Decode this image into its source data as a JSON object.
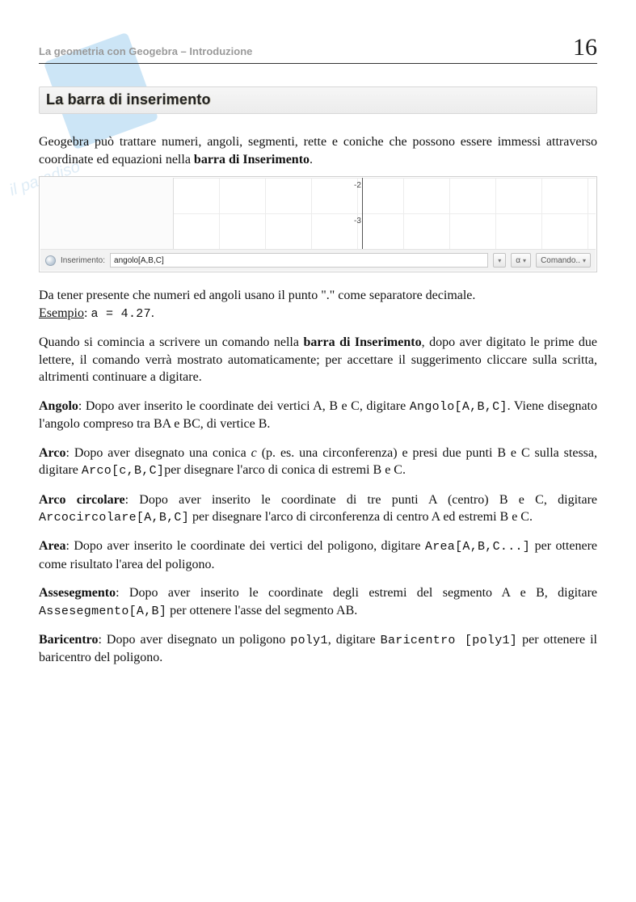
{
  "header": {
    "running_head": "La geometria con Geogebra – Introduzione",
    "page_number": "16"
  },
  "section": {
    "title": "La barra di inserimento"
  },
  "watermark": {
    "subtitle": "il paradiso"
  },
  "intro": {
    "p1_a": "Geogebra può trattare numeri, angoli, segmenti, rette e coniche che possono essere immessi attraverso coordinate ed equazioni nella ",
    "p1_b": "barra di Inserimento",
    "p1_c": "."
  },
  "app": {
    "axis_label_2": "-2",
    "axis_label_3": "-3",
    "input_label": "Inserimento:",
    "input_value": "angolo[A,B,C]",
    "alpha_button": "α",
    "command_label": "Comando.."
  },
  "para2": {
    "a": "Da tener presente che numeri ed angoli usano il punto \".\" come separatore decimale.",
    "ex_label": "Esempio",
    "ex_sep": ": ",
    "ex_code": "a = 4.27",
    "ex_end": "."
  },
  "para3": {
    "a": "Quando si comincia a scrivere un comando nella ",
    "b": "barra di Inserimento",
    "c": ", dopo aver digitato le prime due lettere, il comando verrà mostrato automaticamente; per accettare il suggerimento cliccare sulla scritta, altrimenti continuare a digitare."
  },
  "entries": {
    "angolo": {
      "term": "Angolo",
      "a": ": Dopo aver inserito le coordinate dei vertici A, B e C, digitare ",
      "code": "Angolo[A,B,C]",
      "b": ". Viene disegnato l'angolo compreso tra BA e BC, di vertice B."
    },
    "arco": {
      "term": "Arco",
      "a": ": Dopo aver disegnato una conica ",
      "it": "c",
      "a2": " (p. es. una circonferenza) e presi due punti B e C sulla stessa, digitare ",
      "code": "Arco[c,B,C]",
      "b": "per disegnare l'arco di conica di estremi B e C."
    },
    "arcocirc": {
      "term": "Arco circolare",
      "a": ": Dopo aver inserito le coordinate di tre punti A (centro) B e C, digitare ",
      "code": "Arcocircolare[A,B,C]",
      "b": " per disegnare l'arco di circonferenza di centro A ed estremi B e C."
    },
    "area": {
      "term": "Area",
      "a": ": Dopo aver inserito le coordinate dei vertici del poligono, digitare ",
      "code": "Area[A,B,C...]",
      "b": " per ottenere come risultato l'area del poligono."
    },
    "asse": {
      "term": "Assesegmento",
      "a": ": Dopo aver inserito le coordinate degli estremi del segmento A e B,  digitare ",
      "code": "Assesegmento[A,B]",
      "b": " per ottenere l'asse del segmento AB."
    },
    "bari": {
      "term": "Baricentro",
      "a": ": Dopo aver disegnato un poligono ",
      "code1": "poly1",
      "a2": ", digitare ",
      "code2": "Baricentro [poly1]",
      "b": " per ottenere il baricentro del poligono."
    }
  }
}
